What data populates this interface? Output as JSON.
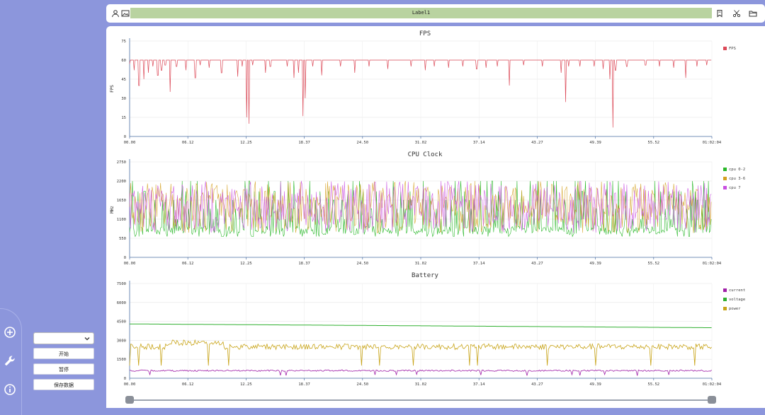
{
  "window": {
    "width": 1080,
    "height": 577
  },
  "controls": {
    "select_value": "",
    "start_label": "开始",
    "pause_label": "暂停",
    "save_label": "保存数据"
  },
  "sidebar_icons": [
    "add-circle-icon",
    "wrench-icon",
    "info-icon"
  ],
  "toolbar": {
    "label_text": "Label1",
    "left_icons": [
      "user-icon",
      "image-icon"
    ],
    "right_icons": [
      "bookmark-icon",
      "scissors-icon",
      "folder-icon"
    ]
  },
  "time_axis": {
    "ticks": [
      "00.00",
      "06.12",
      "12.25",
      "18.37",
      "24.50",
      "31.02",
      "37.14",
      "43.27",
      "49.39",
      "55.52",
      "01:02:04"
    ]
  },
  "chart_data": [
    {
      "type": "line",
      "title": "FPS",
      "ylabel": "FPS",
      "ylim": [
        0,
        75
      ],
      "yticks": [
        0,
        15,
        30,
        45,
        60,
        75
      ],
      "legend_position": "right",
      "series": [
        {
          "name": "FPS",
          "color": "#dc4a58",
          "baseline": 60,
          "dips": [
            [
              0.0,
              57
            ],
            [
              0.5,
              52
            ],
            [
              1.0,
              40
            ],
            [
              1.5,
              45
            ],
            [
              2.0,
              50
            ],
            [
              2.5,
              55
            ],
            [
              3.0,
              48
            ],
            [
              3.4,
              52
            ],
            [
              3.8,
              56
            ],
            [
              4.3,
              35
            ],
            [
              5.0,
              55
            ],
            [
              6.0,
              52
            ],
            [
              7.0,
              46
            ],
            [
              7.5,
              56
            ],
            [
              8.5,
              54
            ],
            [
              9.8,
              50
            ],
            [
              11.5,
              47
            ],
            [
              12.0,
              55
            ],
            [
              12.5,
              15
            ],
            [
              12.7,
              10
            ],
            [
              13.1,
              56
            ],
            [
              14.5,
              50
            ],
            [
              15.0,
              55
            ],
            [
              16.8,
              55
            ],
            [
              17.5,
              46
            ],
            [
              18.0,
              50
            ],
            [
              18.5,
              16
            ],
            [
              18.7,
              30
            ],
            [
              19.5,
              55
            ],
            [
              20.5,
              48
            ],
            [
              22.5,
              55
            ],
            [
              24.0,
              50
            ],
            [
              25.5,
              55
            ],
            [
              27.5,
              53
            ],
            [
              30.0,
              55
            ],
            [
              31.5,
              52
            ],
            [
              32.5,
              55
            ],
            [
              34.0,
              54
            ],
            [
              35.5,
              55
            ],
            [
              37.0,
              53
            ],
            [
              38.0,
              54
            ],
            [
              39.2,
              55
            ],
            [
              40.5,
              40
            ],
            [
              42.0,
              56
            ],
            [
              44.0,
              55
            ],
            [
              46.0,
              50
            ],
            [
              46.5,
              27
            ],
            [
              46.8,
              55
            ],
            [
              48.0,
              55
            ],
            [
              49.5,
              55
            ],
            [
              50.5,
              53
            ],
            [
              51.2,
              45
            ],
            [
              51.5,
              7
            ],
            [
              51.8,
              52
            ],
            [
              53.0,
              55
            ],
            [
              55.0,
              56
            ],
            [
              56.5,
              55
            ],
            [
              58.0,
              54
            ],
            [
              59.3,
              46
            ],
            [
              60.5,
              55
            ],
            [
              61.5,
              56
            ]
          ]
        }
      ]
    },
    {
      "type": "line",
      "title": "CPU Clock",
      "ylabel": "MHz",
      "ylim": [
        0,
        2750
      ],
      "yticks": [
        0,
        550,
        1100,
        1650,
        2200,
        2750
      ],
      "legend_position": "right",
      "series": [
        {
          "name": "cpu 0-2",
          "color": "#2ab82a"
        },
        {
          "name": "cpu 3-6",
          "color": "#d4a020"
        },
        {
          "name": "cpu 7",
          "color": "#c94fe0"
        }
      ]
    },
    {
      "type": "line",
      "title": "Battery",
      "ylim": [
        0,
        7500
      ],
      "yticks": [
        0,
        1500,
        3000,
        4500,
        6000,
        7500
      ],
      "legend_position": "right",
      "series": [
        {
          "name": "current",
          "color": "#a020a8",
          "approx_level": 600
        },
        {
          "name": "voltage",
          "color": "#30b030",
          "start": 4300,
          "end": 4000
        },
        {
          "name": "power",
          "color": "#c8a418",
          "approx_level": 2500
        }
      ]
    }
  ],
  "slider": {
    "start": 0.0,
    "end": 1.0
  }
}
